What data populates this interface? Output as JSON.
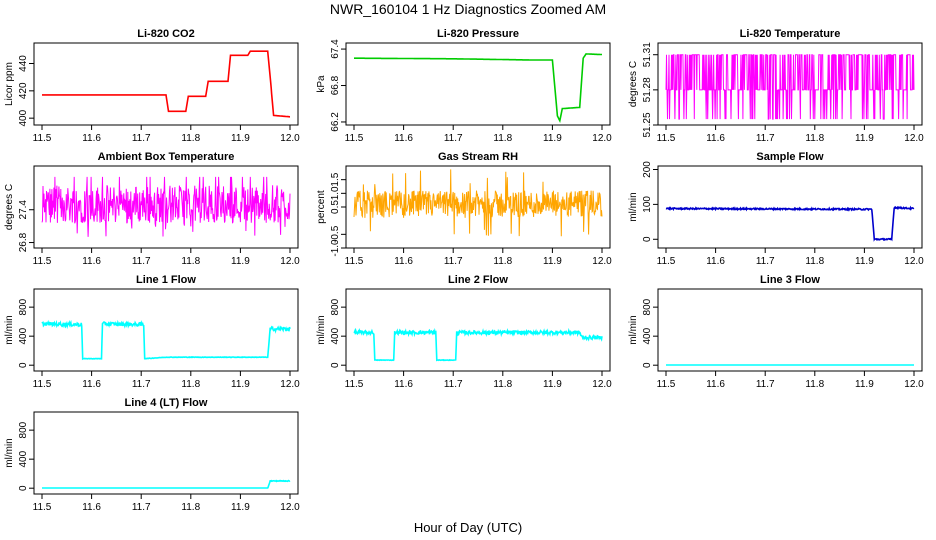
{
  "figure": {
    "title": "NWR_160104  1 Hz Diagnostics Zoomed AM",
    "xlabel": "Hour of Day (UTC)"
  },
  "chart_data": [
    {
      "type": "line",
      "title": "Li-820 CO2",
      "xlabel": "",
      "ylabel": "Licor ppm",
      "color": "#ff0000",
      "xlim": [
        11.5,
        12.0
      ],
      "xticks": [
        "11.5",
        "11.6",
        "11.7",
        "11.8",
        "11.9",
        "12.0"
      ],
      "ylim": [
        395,
        455
      ],
      "yticks": [
        "400",
        "420",
        "440"
      ],
      "series": [
        {
          "x": [
            11.5,
            11.75,
            11.755,
            11.79,
            11.795,
            11.83,
            11.835,
            11.875,
            11.88,
            11.915,
            11.92,
            11.955,
            11.96,
            11.967,
            12.0
          ],
          "y": [
            417,
            417,
            405,
            405,
            416,
            416,
            427,
            427,
            446,
            446,
            449,
            449,
            430,
            402,
            401
          ]
        }
      ]
    },
    {
      "type": "line",
      "title": "Li-820 Pressure",
      "xlabel": "",
      "ylabel": "kPa",
      "color": "#00cc00",
      "xlim": [
        11.5,
        12.0
      ],
      "xticks": [
        "11.5",
        "11.6",
        "11.7",
        "11.8",
        "11.9",
        "12.0"
      ],
      "ylim": [
        66.15,
        67.5
      ],
      "yticks": [
        "66.2",
        "66.8",
        "67.4"
      ],
      "series": [
        {
          "x": [
            11.5,
            11.7,
            11.86,
            11.9,
            11.91,
            11.915,
            11.92,
            11.955,
            11.962,
            11.968,
            12.0
          ],
          "y": [
            67.25,
            67.24,
            67.22,
            67.22,
            66.3,
            66.22,
            66.42,
            66.44,
            67.25,
            67.32,
            67.31
          ]
        }
      ]
    },
    {
      "type": "line",
      "title": "Li-820 Temperature",
      "xlabel": "",
      "ylabel": "degrees C",
      "color": "#ff00ff",
      "xlim": [
        11.5,
        12.0
      ],
      "xticks": [
        "11.5",
        "11.6",
        "11.7",
        "11.8",
        "11.9",
        "12.0"
      ],
      "ylim": [
        51.25,
        51.32
      ],
      "yticks": [
        "51.25",
        "51.28",
        "51.31"
      ],
      "series": [
        {
          "x": [
            11.5,
            12.0
          ],
          "y": [
            51.28,
            51.28
          ]
        }
      ]
    },
    {
      "type": "line",
      "title": "Ambient Box Temperature",
      "xlabel": "",
      "ylabel": "degrees C",
      "color": "#ff00ff",
      "xlim": [
        11.5,
        12.0
      ],
      "xticks": [
        "11.5",
        "11.6",
        "11.7",
        "11.8",
        "11.9",
        "12.0"
      ],
      "ylim": [
        26.7,
        28.2
      ],
      "yticks": [
        "26.8",
        "27.4"
      ],
      "series": [
        {
          "x": [
            11.5,
            12.0
          ],
          "y": [
            27.5,
            27.5
          ]
        }
      ]
    },
    {
      "type": "line",
      "title": "Gas Stream RH",
      "xlabel": "",
      "ylabel": "percent",
      "color": "#ffa500",
      "xlim": [
        11.5,
        12.0
      ],
      "xticks": [
        "11.5",
        "11.6",
        "11.7",
        "11.8",
        "11.9",
        "12.0"
      ],
      "ylim": [
        -1.0,
        2.0
      ],
      "yticks": [
        "-1.0",
        "-0.5",
        "0.5",
        "1.0",
        "1.5"
      ],
      "series": [
        {
          "x": [
            11.5,
            12.0
          ],
          "y": [
            0.6,
            0.6
          ]
        }
      ]
    },
    {
      "type": "line",
      "title": "Sample Flow",
      "xlabel": "",
      "ylabel": "ml/min",
      "color": "#0000cc",
      "xlim": [
        11.5,
        12.0
      ],
      "xticks": [
        "11.5",
        "11.6",
        "11.7",
        "11.8",
        "11.9",
        "12.0"
      ],
      "ylim": [
        -25,
        210
      ],
      "yticks": [
        "0",
        "100",
        "200"
      ],
      "series": [
        {
          "x": [
            11.5,
            11.915,
            11.92,
            11.955,
            11.96,
            12.0
          ],
          "y": [
            88,
            86,
            0,
            0,
            91,
            88
          ]
        }
      ]
    },
    {
      "type": "line",
      "title": "Line 1 Flow",
      "xlabel": "",
      "ylabel": "ml/min",
      "color": "#00ffff",
      "xlim": [
        11.5,
        12.0
      ],
      "xticks": [
        "11.5",
        "11.6",
        "11.7",
        "11.8",
        "11.9",
        "12.0"
      ],
      "ylim": [
        -80,
        1050
      ],
      "yticks": [
        "0",
        "400",
        "800"
      ],
      "series": [
        {
          "x": [
            11.5,
            11.58,
            11.582,
            11.62,
            11.622,
            11.705,
            11.707,
            11.75,
            11.955,
            11.96,
            12.0
          ],
          "y": [
            570,
            560,
            90,
            90,
            570,
            560,
            90,
            110,
            110,
            500,
            500
          ]
        }
      ]
    },
    {
      "type": "line",
      "title": "Line 2 Flow",
      "xlabel": "",
      "ylabel": "ml/min",
      "color": "#00ffff",
      "xlim": [
        11.5,
        12.0
      ],
      "xticks": [
        "11.5",
        "11.6",
        "11.7",
        "11.8",
        "11.9",
        "12.0"
      ],
      "ylim": [
        -80,
        1050
      ],
      "yticks": [
        "0",
        "400",
        "800"
      ],
      "series": [
        {
          "x": [
            11.5,
            11.54,
            11.542,
            11.58,
            11.582,
            11.665,
            11.667,
            11.705,
            11.707,
            11.955,
            11.96,
            12.0
          ],
          "y": [
            450,
            450,
            70,
            70,
            450,
            450,
            70,
            70,
            450,
            450,
            380,
            380
          ]
        }
      ]
    },
    {
      "type": "line",
      "title": "Line 3 Flow",
      "xlabel": "",
      "ylabel": "ml/min",
      "color": "#00ffff",
      "xlim": [
        11.5,
        12.0
      ],
      "xticks": [
        "11.5",
        "11.6",
        "11.7",
        "11.8",
        "11.9",
        "12.0"
      ],
      "ylim": [
        -80,
        1050
      ],
      "yticks": [
        "0",
        "400",
        "800"
      ],
      "series": [
        {
          "x": [
            11.5,
            12.0
          ],
          "y": [
            3,
            3
          ]
        }
      ]
    },
    {
      "type": "line",
      "title": "Line 4 (LT) Flow",
      "xlabel": "",
      "ylabel": "ml/min",
      "color": "#00ffff",
      "xlim": [
        11.5,
        12.0
      ],
      "xticks": [
        "11.5",
        "11.6",
        "11.7",
        "11.8",
        "11.9",
        "12.0"
      ],
      "ylim": [
        -80,
        1050
      ],
      "yticks": [
        "0",
        "400",
        "800"
      ],
      "series": [
        {
          "x": [
            11.5,
            11.955,
            11.96,
            12.0
          ],
          "y": [
            3,
            3,
            100,
            100
          ]
        }
      ]
    }
  ]
}
